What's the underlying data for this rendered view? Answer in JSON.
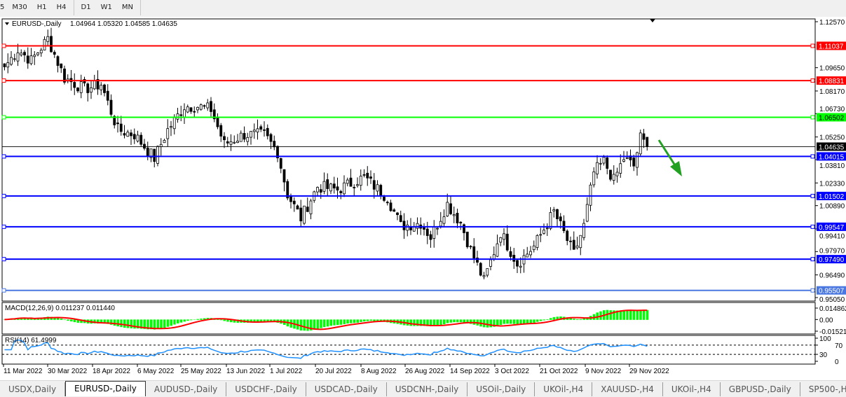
{
  "timeframes": [
    "5",
    "M30",
    "H1",
    "H4",
    "D1",
    "W1",
    "MN"
  ],
  "chart": {
    "header": "EURUSD-,Daily",
    "ohlc": "1.04964 1.05320 1.04585 1.04635",
    "current_price": "1.04635"
  },
  "price_axis": [
    "1.12570",
    "1.09650",
    "1.08170",
    "1.06730",
    "1.05250",
    "1.03810",
    "1.02330",
    "1.00890",
    "0.99410",
    "0.97970",
    "0.96490",
    "0.95050"
  ],
  "levels": [
    {
      "price": "1.11037",
      "color": "#ff0000"
    },
    {
      "price": "1.08831",
      "color": "#ff0000"
    },
    {
      "price": "1.06502",
      "color": "#00ff00"
    },
    {
      "price": "1.04015",
      "color": "#0000ff"
    },
    {
      "price": "1.01502",
      "color": "#0000ff"
    },
    {
      "price": "0.99547",
      "color": "#0000ff"
    },
    {
      "price": "0.97490",
      "color": "#0000ff"
    },
    {
      "price": "0.95507",
      "color": "#4a78e0"
    }
  ],
  "macd": {
    "label": "MACD(12,26,9) 0.011237 0.011440",
    "axis": [
      "0.014862",
      "0.00",
      "-0.015211"
    ],
    "hist_color": "#00ff00",
    "signal_color": "#ff0000"
  },
  "rsi": {
    "label": "RSI(14) 61.4999",
    "axis": [
      "100",
      "70",
      "30",
      "0"
    ],
    "color": "#1e90ff"
  },
  "dates": [
    "11 Mar 2022",
    "30 Mar 2022",
    "18 Apr 2022",
    "6 May 2022",
    "25 May 2022",
    "13 Jun 2022",
    "1 Jul 2022",
    "20 Jul 2022",
    "8 Aug 2022",
    "26 Aug 2022",
    "14 Sep 2022",
    "3 Oct 2022",
    "21 Oct 2022",
    "9 Nov 2022",
    "29 Nov 2022"
  ],
  "tabs": [
    {
      "label": "USDX,Daily"
    },
    {
      "label": "EURUSD-,Daily",
      "active": true
    },
    {
      "label": "AUDUSD-,Daily"
    },
    {
      "label": "USDCHF-,Daily"
    },
    {
      "label": "USDCAD-,Daily"
    },
    {
      "label": "USDCNH-,Daily"
    },
    {
      "label": "USOil-,Daily"
    },
    {
      "label": "UKOil-,H4"
    },
    {
      "label": "XAUUSD-,H4"
    },
    {
      "label": "UKOil-,H4"
    },
    {
      "label": "GBPUSD-,Daily"
    },
    {
      "label": "SP500-,H4"
    }
  ],
  "chart_data": {
    "type": "candlestick",
    "symbol": "EURUSD-",
    "timeframe": "Daily",
    "ylim": [
      0.9505,
      1.1257
    ],
    "close_waypoints": [
      [
        0,
        1.097
      ],
      [
        4,
        1.108
      ],
      [
        8,
        1.101
      ],
      [
        13,
        1.115
      ],
      [
        18,
        1.09
      ],
      [
        24,
        1.083
      ],
      [
        29,
        1.086
      ],
      [
        34,
        1.057
      ],
      [
        39,
        1.054
      ],
      [
        45,
        1.039
      ],
      [
        49,
        1.057
      ],
      [
        54,
        1.072
      ],
      [
        58,
        1.072
      ],
      [
        62,
        1.07
      ],
      [
        66,
        1.048
      ],
      [
        72,
        1.054
      ],
      [
        78,
        1.054
      ],
      [
        82,
        1.043
      ],
      [
        85,
        1.016
      ],
      [
        89,
        1.001
      ],
      [
        94,
        1.021
      ],
      [
        100,
        1.019
      ],
      [
        108,
        1.027
      ],
      [
        115,
        1.014
      ],
      [
        119,
        0.996
      ],
      [
        125,
        0.998
      ],
      [
        128,
        0.989
      ],
      [
        133,
        1.01
      ],
      [
        137,
        0.998
      ],
      [
        140,
        0.981
      ],
      [
        144,
        0.961
      ],
      [
        149,
        0.992
      ],
      [
        154,
        0.972
      ],
      [
        159,
        0.983
      ],
      [
        165,
        1.005
      ],
      [
        171,
        0.978
      ],
      [
        174,
        0.996
      ],
      [
        177,
        1.03
      ],
      [
        180,
        1.037
      ],
      [
        183,
        1.025
      ],
      [
        186,
        1.039
      ],
      [
        189,
        1.034
      ],
      [
        191,
        1.052
      ],
      [
        193,
        1.04635
      ]
    ]
  }
}
